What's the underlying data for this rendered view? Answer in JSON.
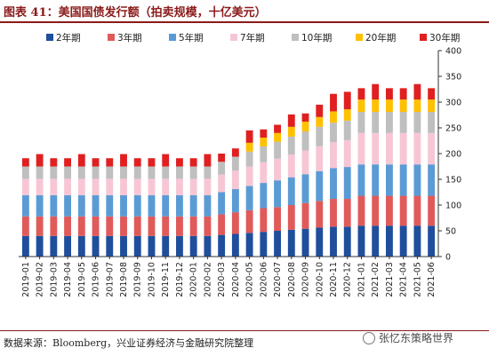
{
  "header": {
    "title": "图表 41：美国国债发行额（拍卖规模，十亿美元）"
  },
  "footer": {
    "source": "数据来源：Bloomberg，兴业证券经济与金融研究院整理",
    "watermark": "张忆东策略世界"
  },
  "chart_data": {
    "type": "bar",
    "stacked": true,
    "title": "",
    "xlabel": "",
    "ylabel": "",
    "ylim": [
      0,
      400
    ],
    "yticks": [
      0,
      50,
      100,
      150,
      200,
      250,
      300,
      350,
      400
    ],
    "grid": false,
    "legend_position": "top",
    "categories": [
      "2019-01",
      "2019-02",
      "2019-03",
      "2019-04",
      "2019-05",
      "2019-06",
      "2019-07",
      "2019-08",
      "2019-09",
      "2019-10",
      "2019-11",
      "2019-12",
      "2020-01",
      "2020-02",
      "2020-03",
      "2020-04",
      "2020-05",
      "2020-06",
      "2020-07",
      "2020-08",
      "2020-09",
      "2020-10",
      "2020-11",
      "2020-12",
      "2021-01",
      "2021-02",
      "2021-03",
      "2021-04",
      "2021-05",
      "2021-06"
    ],
    "x_tick_labels": [
      "2019-01",
      "2019-02",
      "2019-03",
      "2019-04",
      "2019-05",
      "2019-06",
      "2019-07",
      "2019-08",
      "2019-09",
      "2019-10",
      "2019-11",
      "2019-12",
      "2020-01",
      "2020-02",
      "2020-03",
      "2020-04",
      "2020-05",
      "2020-06",
      "2020-07",
      "2020-08",
      "2020-09",
      "2020-10",
      "2020-11",
      "2020-12",
      "2021-01",
      "2021-02",
      "2021-03",
      "2021-04",
      "2021-05",
      "2021-06"
    ],
    "series": [
      {
        "name": "2年期",
        "color": "#1f4e9c",
        "values": [
          40,
          40,
          40,
          40,
          40,
          40,
          40,
          40,
          40,
          40,
          40,
          40,
          40,
          40,
          42,
          44,
          46,
          48,
          50,
          52,
          54,
          56,
          58,
          58,
          60,
          60,
          60,
          60,
          60,
          60
        ]
      },
      {
        "name": "3年期",
        "color": "#e05a5a",
        "values": [
          38,
          38,
          38,
          38,
          38,
          38,
          38,
          38,
          38,
          38,
          38,
          38,
          38,
          38,
          40,
          42,
          44,
          46,
          46,
          48,
          50,
          52,
          54,
          54,
          58,
          58,
          58,
          58,
          58,
          58
        ]
      },
      {
        "name": "5年期",
        "color": "#5b9bd5",
        "values": [
          41,
          41,
          41,
          41,
          41,
          41,
          41,
          41,
          41,
          41,
          41,
          41,
          41,
          41,
          43,
          45,
          47,
          49,
          52,
          54,
          56,
          58,
          60,
          62,
          61,
          61,
          61,
          61,
          61,
          61
        ]
      },
      {
        "name": "7年期",
        "color": "#f7c6d4",
        "values": [
          32,
          32,
          32,
          32,
          32,
          32,
          32,
          32,
          32,
          32,
          32,
          32,
          32,
          32,
          34,
          36,
          38,
          40,
          42,
          44,
          46,
          48,
          50,
          52,
          61,
          61,
          61,
          61,
          61,
          61
        ]
      },
      {
        "name": "10年期",
        "color": "#bfbfbf",
        "values": [
          24,
          24,
          24,
          24,
          24,
          24,
          24,
          24,
          24,
          24,
          24,
          24,
          24,
          24,
          25,
          27,
          29,
          31,
          33,
          35,
          37,
          38,
          38,
          38,
          41,
          41,
          41,
          41,
          41,
          41
        ]
      },
      {
        "name": "20年期",
        "color": "#ffc000",
        "values": [
          0,
          0,
          0,
          0,
          0,
          0,
          0,
          0,
          0,
          0,
          0,
          0,
          0,
          0,
          0,
          0,
          17,
          17,
          17,
          19,
          19,
          19,
          22,
          22,
          24,
          24,
          24,
          24,
          24,
          24
        ]
      },
      {
        "name": "30年期",
        "color": "#e02020",
        "values": [
          16,
          24,
          16,
          16,
          24,
          16,
          16,
          24,
          16,
          16,
          24,
          16,
          16,
          24,
          16,
          16,
          24,
          16,
          16,
          24,
          16,
          24,
          34,
          34,
          22,
          30,
          22,
          22,
          30,
          22
        ]
      }
    ]
  }
}
